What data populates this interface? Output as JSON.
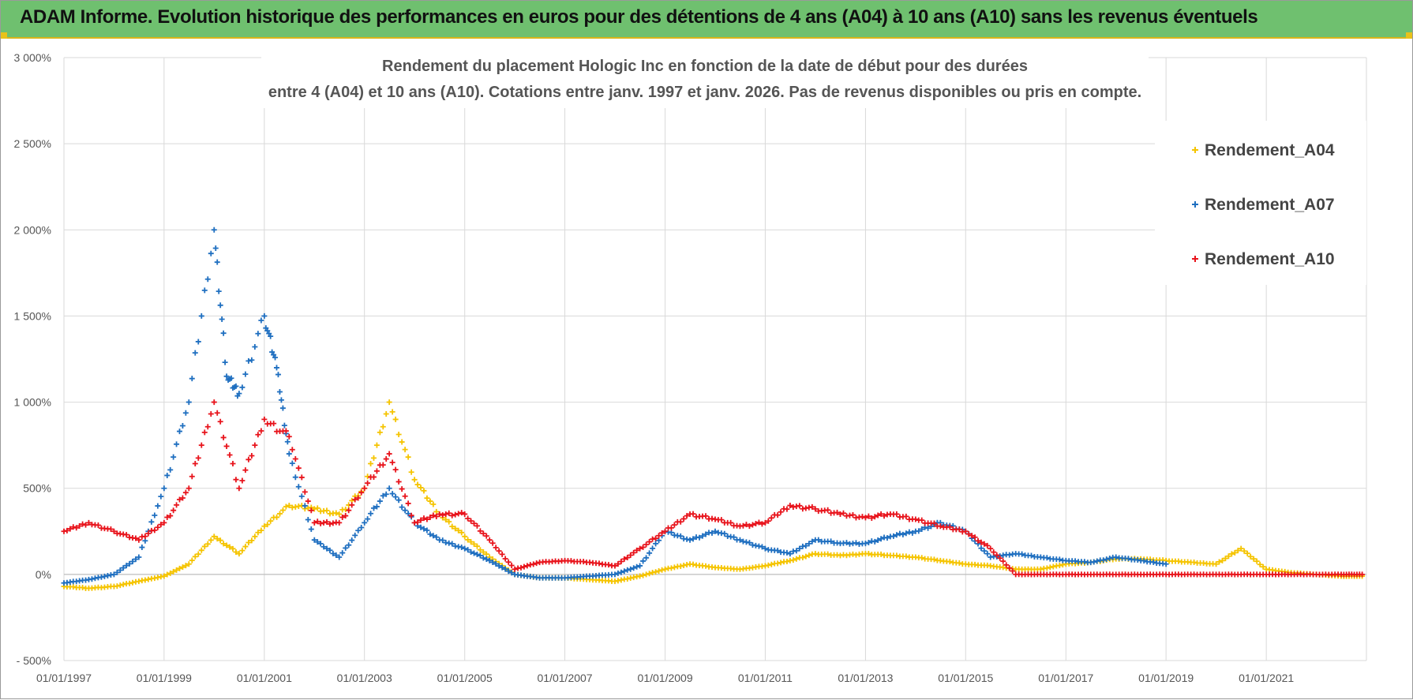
{
  "banner": {
    "title": "ADAM Informe. Evolution historique des performances en euros pour des détentions de 4 ans (A04) à 10 ans (A10) sans les revenus éventuels"
  },
  "colors": {
    "banner_bg": "#6fc06f",
    "A04": "#f5c400",
    "A07": "#1f6fc0",
    "A10": "#e8141c",
    "grid": "#d9d9d9"
  },
  "chart_data": {
    "type": "scatter",
    "title_lines": [
      "Rendement du placement Hologic Inc en fonction de la date de début pour des durées",
      "entre 4 (A04) et 10 ans (A10).  Cotations entre janv. 1997 et janv. 2026. Pas de revenus disponibles ou pris en compte."
    ],
    "marker": "+",
    "grid": true,
    "legend_position": "top-right",
    "x_range": [
      "1997-01-01",
      "2023-01-01"
    ],
    "x_ticks": [
      "01/01/1997",
      "01/01/1999",
      "01/01/2001",
      "01/01/2003",
      "01/01/2005",
      "01/01/2007",
      "01/01/2009",
      "01/01/2011",
      "01/01/2013",
      "01/01/2015",
      "01/01/2017",
      "01/01/2019",
      "01/01/2021"
    ],
    "y_range": [
      -500,
      3000
    ],
    "y_ticks": [
      3000,
      2500,
      2000,
      1500,
      1000,
      500,
      0,
      -500
    ],
    "y_tick_labels": [
      "3 000%",
      "2 500%",
      "2 000%",
      "1 500%",
      "1 000%",
      "500%",
      "0%",
      "- 500%"
    ],
    "series": [
      {
        "name": "Rendement_A04",
        "color": "#f5c400",
        "x": [
          "1997-01",
          "1997-07",
          "1998-01",
          "1998-07",
          "1999-01",
          "1999-07",
          "2000-01",
          "2000-07",
          "2001-01",
          "2001-07",
          "2002-01",
          "2002-07",
          "2003-01",
          "2003-07",
          "2004-01",
          "2004-07",
          "2005-01",
          "2005-07",
          "2006-01",
          "2006-07",
          "2007-01",
          "2007-07",
          "2008-01",
          "2008-07",
          "2009-01",
          "2009-07",
          "2010-01",
          "2010-07",
          "2011-01",
          "2011-07",
          "2012-01",
          "2012-07",
          "2013-01",
          "2013-07",
          "2014-01",
          "2014-07",
          "2015-01",
          "2015-07",
          "2016-01",
          "2016-07",
          "2017-01",
          "2017-07",
          "2018-01",
          "2018-07",
          "2019-01",
          "2019-07",
          "2020-01",
          "2020-07",
          "2021-01",
          "2021-07",
          "2022-01",
          "2022-07",
          "2022-12"
        ],
        "values": [
          -70,
          -80,
          -70,
          -40,
          -10,
          60,
          220,
          120,
          280,
          400,
          380,
          350,
          500,
          1000,
          550,
          350,
          220,
          100,
          0,
          -20,
          -20,
          -30,
          -40,
          -10,
          30,
          60,
          40,
          30,
          50,
          80,
          120,
          110,
          120,
          110,
          100,
          80,
          60,
          50,
          30,
          30,
          60,
          70,
          90,
          90,
          80,
          70,
          60,
          150,
          30,
          10,
          0,
          -10,
          -10
        ]
      },
      {
        "name": "Rendement_A07",
        "color": "#1f6fc0",
        "x": [
          "1997-01",
          "1997-07",
          "1998-01",
          "1998-07",
          "1999-01",
          "1999-07",
          "2000-01",
          "2000-04",
          "2000-07",
          "2001-01",
          "2001-04",
          "2001-07",
          "2002-01",
          "2002-07",
          "2003-01",
          "2003-07",
          "2004-01",
          "2004-07",
          "2005-01",
          "2005-07",
          "2006-01",
          "2006-07",
          "2007-01",
          "2007-07",
          "2008-01",
          "2008-07",
          "2009-01",
          "2009-07",
          "2010-01",
          "2010-07",
          "2011-01",
          "2011-07",
          "2012-01",
          "2012-07",
          "2013-01",
          "2013-07",
          "2014-01",
          "2014-07",
          "2015-01",
          "2015-07",
          "2016-01",
          "2016-07",
          "2017-01",
          "2017-07",
          "2018-01",
          "2018-07",
          "2019-01"
        ],
        "values": [
          -50,
          -30,
          0,
          100,
          500,
          1000,
          2000,
          1150,
          1050,
          1500,
          1200,
          700,
          200,
          100,
          300,
          500,
          300,
          200,
          150,
          80,
          0,
          -20,
          -20,
          -10,
          0,
          50,
          250,
          200,
          250,
          200,
          150,
          120,
          200,
          180,
          180,
          220,
          250,
          300,
          250,
          100,
          120,
          100,
          80,
          70,
          100,
          80,
          60
        ]
      },
      {
        "name": "Rendement_A10",
        "color": "#e8141c",
        "x": [
          "1997-01",
          "1997-07",
          "1998-01",
          "1998-07",
          "1999-01",
          "1999-07",
          "2000-01",
          "2000-07",
          "2001-01",
          "2001-07",
          "2002-01",
          "2002-07",
          "2003-01",
          "2003-07",
          "2004-01",
          "2004-07",
          "2005-01",
          "2005-07",
          "2006-01",
          "2006-07",
          "2007-01",
          "2007-07",
          "2008-01",
          "2008-07",
          "2009-01",
          "2009-07",
          "2010-01",
          "2010-07",
          "2011-01",
          "2011-07",
          "2012-01",
          "2012-07",
          "2013-01",
          "2013-07",
          "2014-01",
          "2014-07",
          "2015-01",
          "2015-07",
          "2016-01",
          "2016-07",
          "2017-01",
          "2017-07",
          "2018-01",
          "2018-07",
          "2019-01",
          "2019-07",
          "2020-01",
          "2020-07",
          "2021-01",
          "2021-07",
          "2022-01",
          "2022-07",
          "2022-12"
        ],
        "values": [
          250,
          300,
          250,
          200,
          300,
          500,
          1000,
          500,
          900,
          800,
          300,
          300,
          500,
          700,
          300,
          350,
          350,
          200,
          30,
          70,
          80,
          70,
          50,
          150,
          250,
          350,
          320,
          280,
          300,
          400,
          380,
          350,
          330,
          350,
          320,
          280,
          250,
          150,
          0,
          0,
          0,
          0,
          0,
          0,
          0,
          0,
          0,
          0,
          0,
          0,
          0,
          0,
          0
        ]
      }
    ]
  }
}
